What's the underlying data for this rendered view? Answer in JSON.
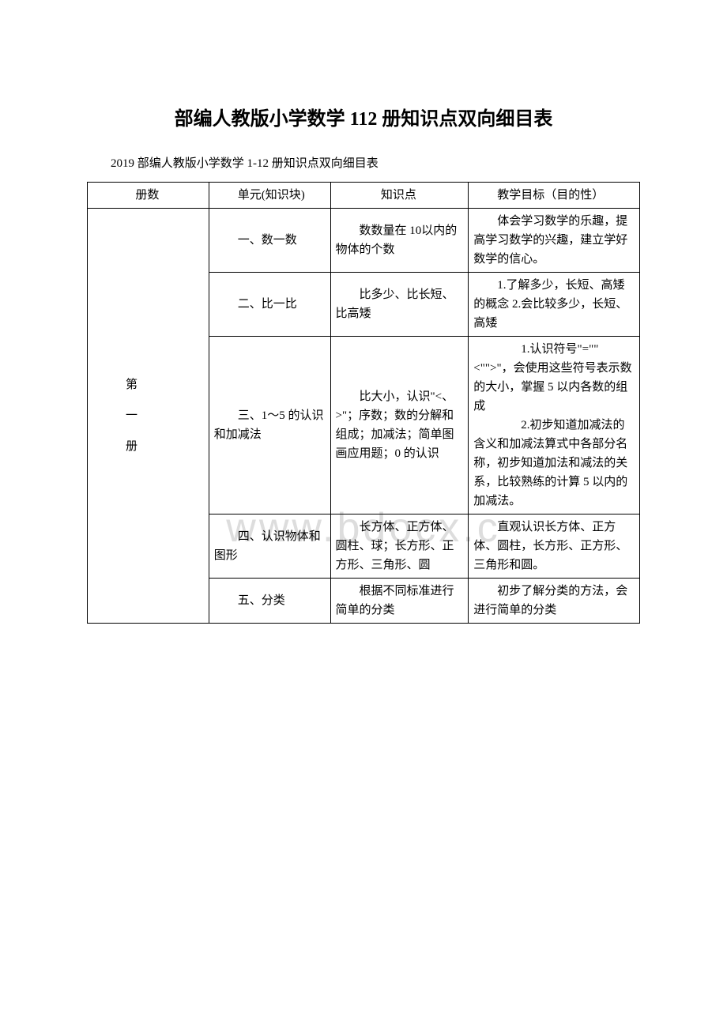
{
  "doc": {
    "title": "部编人教版小学数学 112 册知识点双向细目表",
    "subtitle": "2019 部编人教版小学数学 1-12 册知识点双向细目表",
    "watermark": "www.bdocx.c"
  },
  "table": {
    "header": {
      "c1": "册数",
      "c2": "　　单元(知识块)",
      "c3": "知识点",
      "c4": "　　教学目标（目的性）"
    },
    "volume_label": "第\n一\n册",
    "rows": [
      {
        "unit": "　　一、数一数",
        "point": "　　数数量在 10以内的物体的个数",
        "goal": "　　体会学习数学的乐趣，提高学习数学的兴趣，建立学好数学的信心。"
      },
      {
        "unit": "　　二、比一比",
        "point": "　　比多少、比长短、比高矮",
        "goal": "　　1.了解多少，长短、高矮的概念 2.会比较多少，长短、高矮"
      },
      {
        "unit": "　　三、1～5 的认识和加减法",
        "point": "　　比大小，认识\"<、>\"；序数；数的分解和组成；加减法；简单图画应用题；0 的认识",
        "goal_p1": "　　1.认识符号\"=\"\"<\"\">\"，会使用这些符号表示数的大小，掌握 5 以内各数的组成",
        "goal_p2": "　　2.初步知道加减法的含义和加减法算式中各部分名称，初步知道加法和减法的关系，比较熟练的计算 5 以内的加减法。"
      },
      {
        "unit": "　　四、认识物体和图形",
        "point": "　　长方体、正方体、圆柱、球；长方形、正方形、三角形、圆",
        "goal": "　　直观认识长方体、正方体、圆柱，长方形、正方形、三角形和圆。"
      },
      {
        "unit": "　　五、分类",
        "point": "　　根据不同标准进行简单的分类",
        "goal": "　　初步了解分类的方法，会进行简单的分类"
      }
    ]
  },
  "style": {
    "text_color": "#000000",
    "bg_color": "#ffffff",
    "border_color": "#000000",
    "watermark_color": "#dddddd",
    "title_fontsize": 24,
    "body_fontsize": 15,
    "watermark_fontsize": 52
  }
}
